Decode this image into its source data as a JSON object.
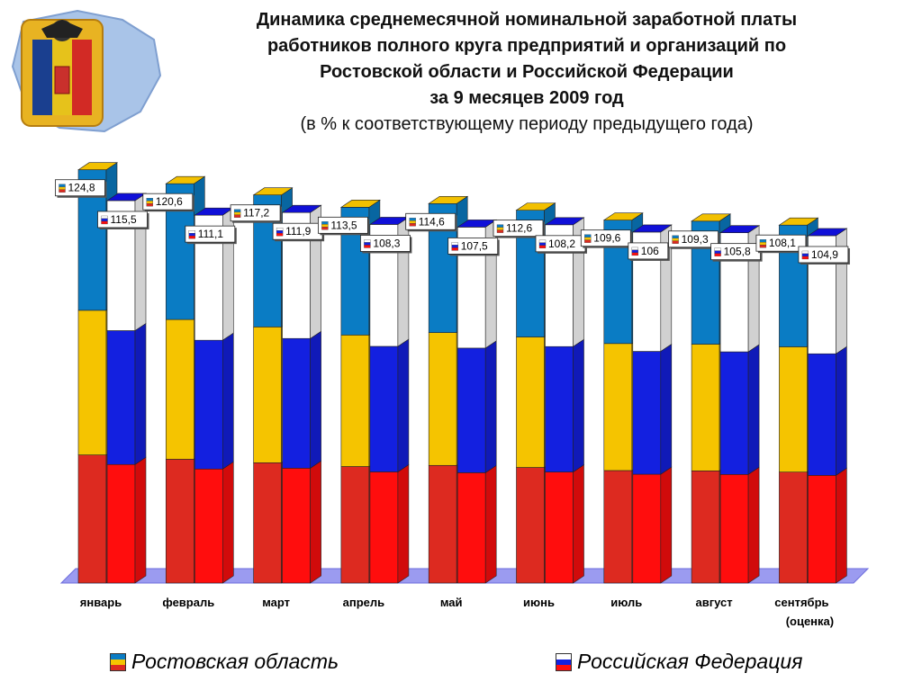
{
  "title": {
    "line1": "Динамика среднемесячной номинальной заработной платы",
    "line2": "работников полного круга предприятий и организаций по",
    "line3": "Ростовской области и Российской Федерации",
    "line4": "за 9 месяцев 2009 год",
    "subtitle": "(в % к соответствующему периоду предыдущего года)"
  },
  "chart_data": {
    "type": "bar",
    "categories": [
      "январь",
      "февраль",
      "март",
      "апрель",
      "май",
      "июнь",
      "июль",
      "август",
      "сентябрь"
    ],
    "category_note": "(оценка)",
    "series": [
      {
        "name": "Ростовская область",
        "values": [
          124.8,
          120.6,
          117.2,
          113.5,
          114.6,
          112.6,
          109.6,
          109.3,
          108.1
        ],
        "labels": [
          "124,8",
          "120,6",
          "117,2",
          "113,5",
          "114,6",
          "112,6",
          "109,6",
          "109,3",
          "108,1"
        ]
      },
      {
        "name": "Российская Федерация",
        "values": [
          115.5,
          111.1,
          111.9,
          108.3,
          107.5,
          108.2,
          106,
          105.8,
          104.9
        ],
        "labels": [
          "115,5",
          "111,1",
          "111,9",
          "108,3",
          "107,5",
          "108,2",
          "106",
          "105,8",
          "104,9"
        ]
      }
    ],
    "ylim": [
      0,
      125
    ],
    "grid": false,
    "legend": "bottom",
    "colors": {
      "ros": [
        "#0a7cc4",
        "#f5c400",
        "#dd2a20"
      ],
      "rf": [
        "#ffffff",
        "#1320e0",
        "#ff0d0d"
      ],
      "floor": "#9b9bf0"
    }
  },
  "legend": {
    "ros": "Ростовская область",
    "rf": "Российская Федерация"
  }
}
